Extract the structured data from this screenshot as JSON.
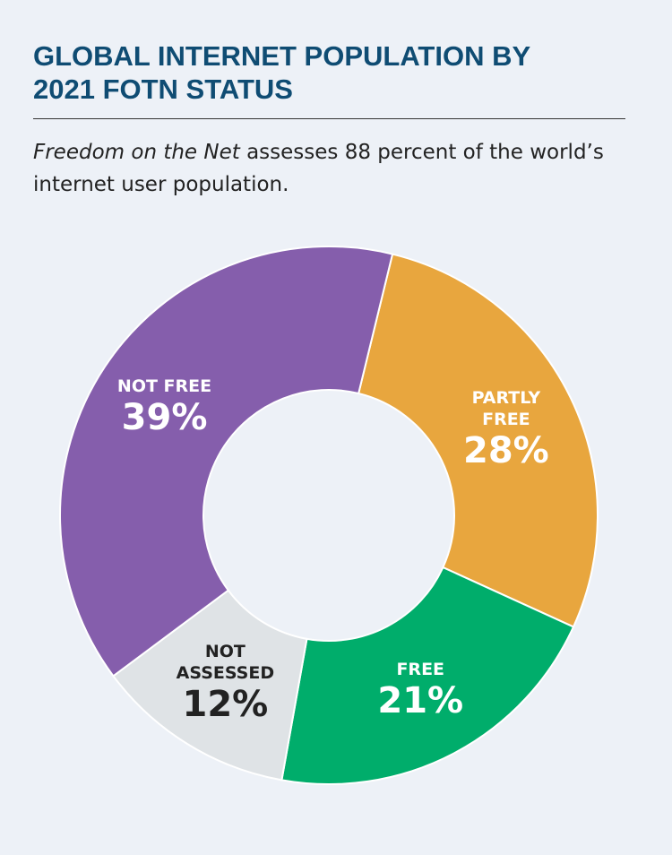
{
  "chart_data": {
    "type": "donut",
    "title": "GLOBAL INTERNET POPULATION BY 2021 FOTN STATUS",
    "subtitle": [
      "Freedom on the Net",
      " assesses 88 percent of the world’s internet user population."
    ],
    "categories": [
      "PARTLY FREE",
      "FREE",
      "NOT ASSESSED",
      "NOT FREE"
    ],
    "values": [
      28,
      21,
      12,
      39
    ],
    "value_labels": [
      "28%",
      "21%",
      "12%",
      "39%"
    ],
    "colors": [
      "#e8a63e",
      "#00ad6b",
      "#dfe3e6",
      "#855eac"
    ],
    "label_colors": [
      "#ffffff",
      "#ffffff",
      "#222222",
      "#ffffff"
    ]
  }
}
